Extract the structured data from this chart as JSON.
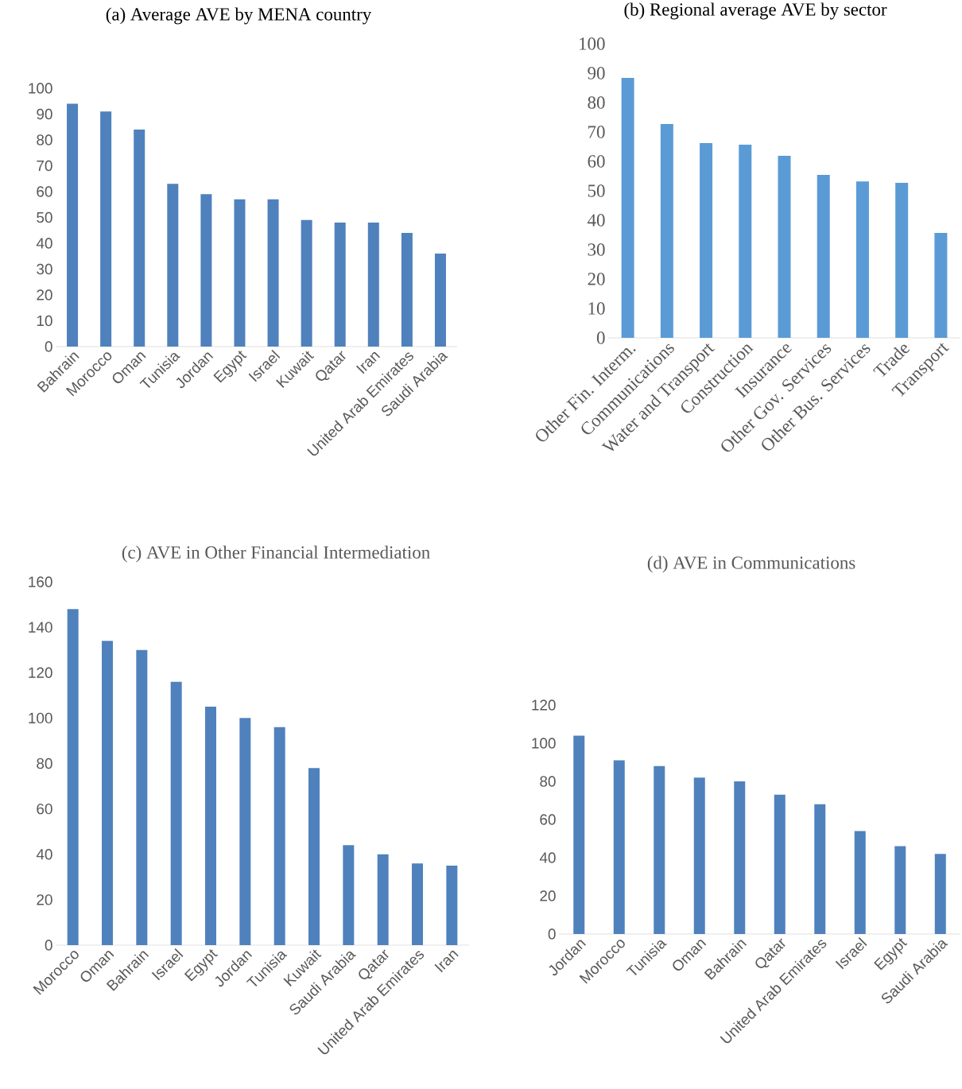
{
  "chart_data": [
    {
      "type": "bar",
      "title": "(a) Average AVE by MENA country",
      "color": "#4f81bd",
      "categories": [
        "Bahrain",
        "Morocco",
        "Oman",
        "Tunisia",
        "Jordan",
        "Egypt",
        "Israel",
        "Kuwait",
        "Qatar",
        "Iran",
        "United Arab Emirates",
        "Saudi Arabia"
      ],
      "values": [
        94,
        91,
        84,
        63,
        59,
        57,
        57,
        49,
        48,
        48,
        44,
        36
      ],
      "ylim": [
        0,
        100
      ],
      "yticks": [
        0,
        10,
        20,
        30,
        40,
        50,
        60,
        70,
        80,
        90,
        100
      ]
    },
    {
      "type": "bar",
      "title": "(b) Regional average AVE by sector",
      "color": "#5b9bd5",
      "categories": [
        "Other Fin. Interm.",
        "Communications",
        "Water and Transport",
        "Construction",
        "Insurance",
        "Other Gov. Services",
        "Other Bus. Services",
        "Trade",
        "Transport"
      ],
      "values": [
        88.4,
        72.7,
        66.2,
        65.7,
        61.9,
        55.4,
        53.2,
        52.7,
        35.7
      ],
      "ylim": [
        0,
        100
      ],
      "yticks": [
        0,
        10,
        20,
        30,
        40,
        50,
        60,
        70,
        80,
        90,
        100
      ]
    },
    {
      "type": "bar",
      "title": "(c) AVE in Other Financial Intermediation",
      "color": "#4f81bd",
      "categories": [
        "Morocco",
        "Oman",
        "Bahrain",
        "Israel",
        "Egypt",
        "Jordan",
        "Tunisia",
        "Kuwait",
        "Saudi Arabia",
        "Qatar",
        "United Arab Emirates",
        "Iran"
      ],
      "values": [
        148,
        134,
        130,
        116,
        105,
        100,
        96,
        78,
        44,
        40,
        36,
        35
      ],
      "ylim": [
        0,
        160
      ],
      "yticks": [
        0,
        20,
        40,
        60,
        80,
        100,
        120,
        140,
        160
      ]
    },
    {
      "type": "bar",
      "title": "(d) AVE in Communications",
      "color": "#4f81bd",
      "categories": [
        "Jordan",
        "Morocco",
        "Tunisia",
        "Oman",
        "Bahrain",
        "Qatar",
        "United Arab Emirates",
        "Israel",
        "Egypt",
        "Saudi Arabia"
      ],
      "values": [
        104,
        91,
        88,
        82,
        80,
        73,
        68,
        54,
        46,
        42
      ],
      "ylim": [
        0,
        120
      ],
      "yticks": [
        0,
        20,
        40,
        60,
        80,
        100,
        120
      ]
    }
  ]
}
